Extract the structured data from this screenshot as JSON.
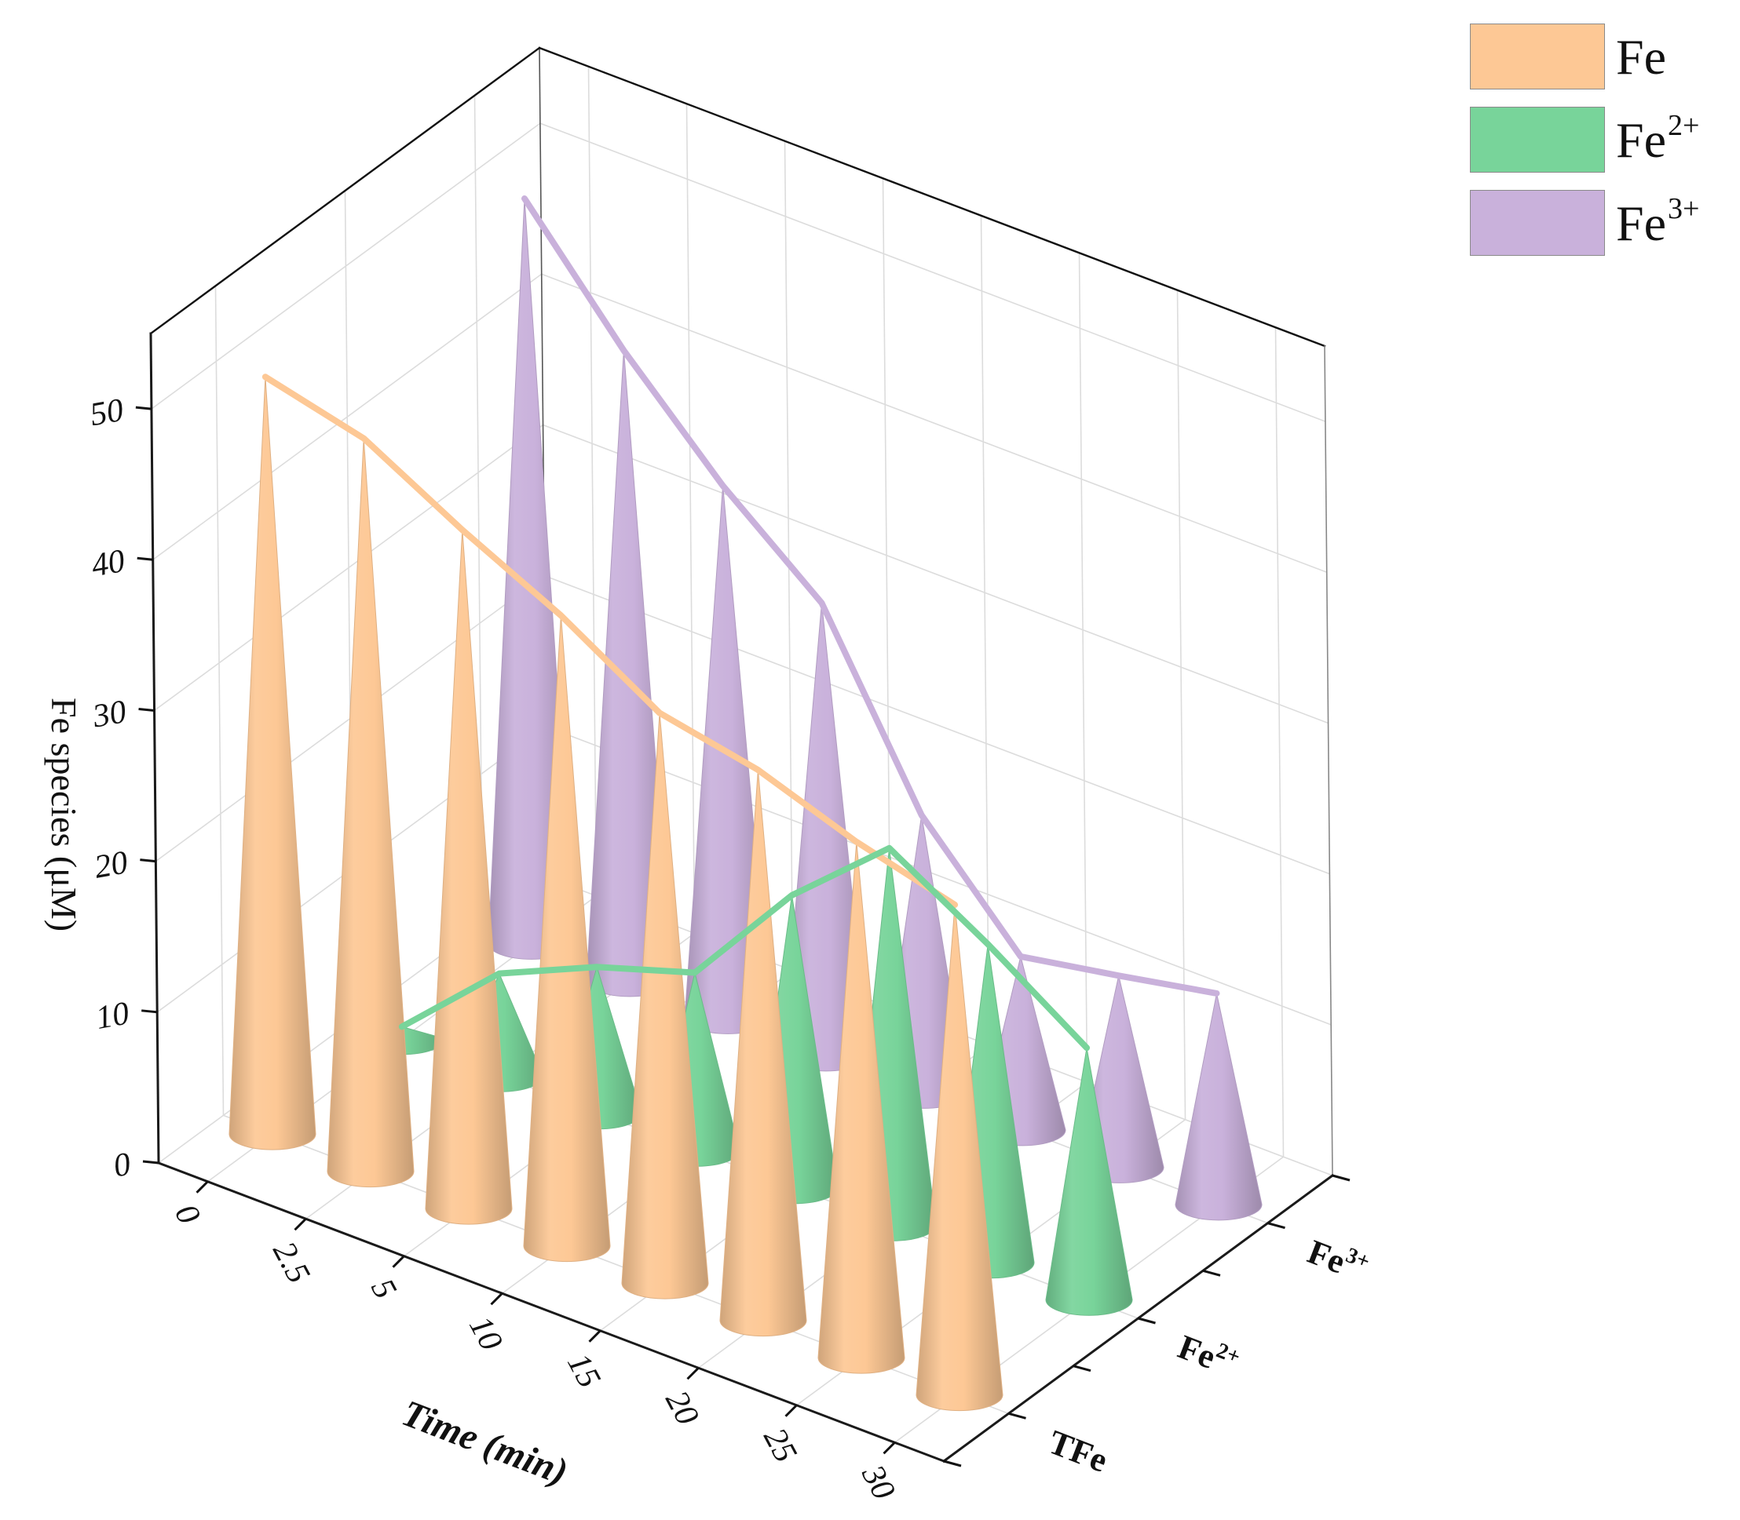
{
  "chart_data": {
    "type": "3d-cone",
    "title": "",
    "xlabel": "Time (min)",
    "ylabel": "",
    "zlabel": "Fe species (μM)",
    "categories": [
      "0",
      "2.5",
      "5",
      "10",
      "15",
      "20",
      "25",
      "30"
    ],
    "z_ticks": [
      "0",
      "10",
      "20",
      "30",
      "40",
      "50"
    ],
    "zlim": [
      0,
      55
    ],
    "grid": true,
    "legend_position": "top-right",
    "series": [
      {
        "name": "TFe",
        "base": "Fe",
        "sup": "",
        "axis_label": "TFe",
        "color": "#fdc895",
        "values": [
          50.2,
          48.6,
          45.0,
          41.8,
          37.8,
          36.5,
          34.2,
          32.5
        ]
      },
      {
        "name": "Fe2+",
        "base": "Fe",
        "sup": "2+",
        "axis_label": "Fe",
        "color": "#78d49a",
        "values": [
          0.8,
          6.8,
          9.7,
          11.8,
          19.4,
          25.0,
          21.1,
          16.7
        ]
      },
      {
        "name": "Fe3+",
        "base": "Fe",
        "sup": "3+",
        "axis_label": "Fe",
        "color": "#c9b1db",
        "values": [
          49.4,
          41.8,
          35.3,
          30.0,
          18.4,
          11.5,
          12.7,
          14.0
        ]
      }
    ]
  }
}
